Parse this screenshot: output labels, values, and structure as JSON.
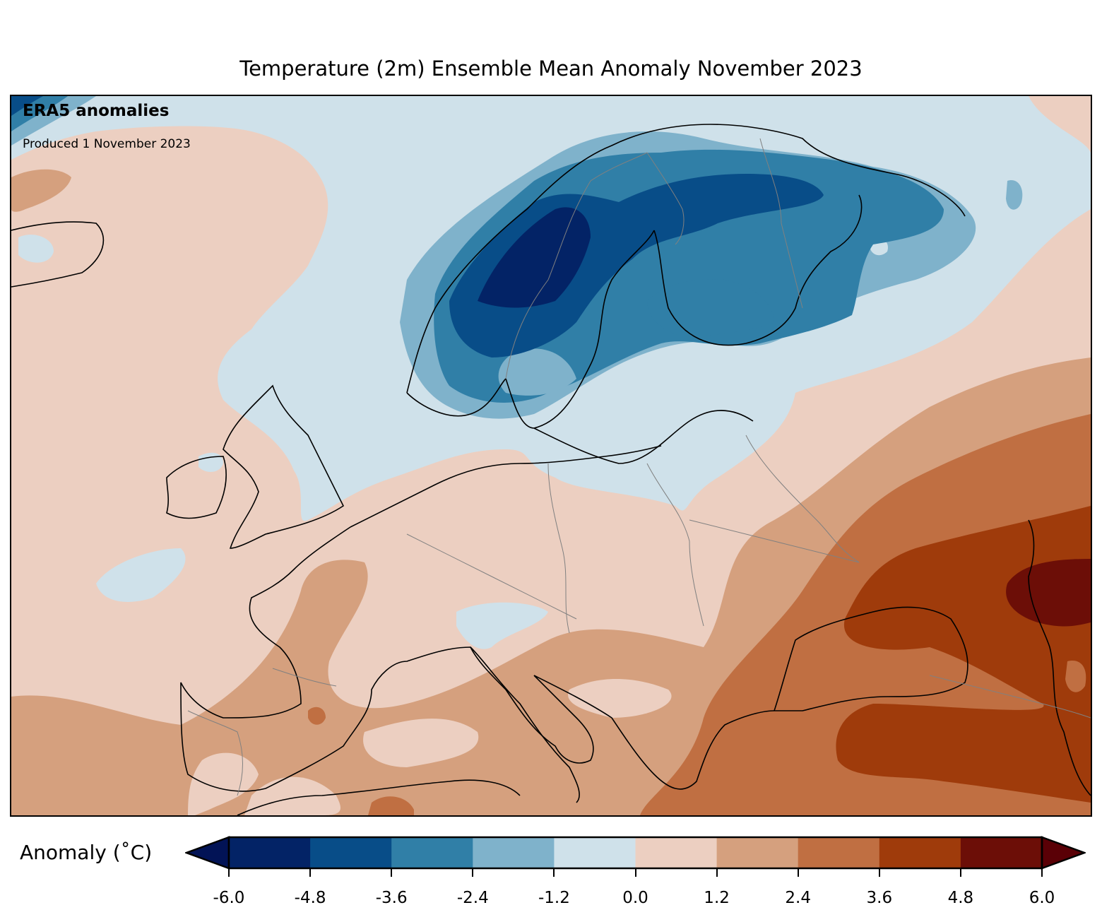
{
  "title": "Temperature (2m) Ensemble Mean Anomaly November 2023",
  "annotations": {
    "source": "ERA5 anomalies",
    "produced": "Produced 1 November 2023"
  },
  "colorbar": {
    "label": "Anomaly (˚C)",
    "ticks": [
      "-6.0",
      "-4.8",
      "-3.6",
      "-2.4",
      "-1.2",
      "0.0",
      "1.2",
      "2.4",
      "3.6",
      "4.8",
      "6.0"
    ],
    "levels": [
      -6.0,
      -4.8,
      -3.6,
      -2.4,
      -1.2,
      0.0,
      1.2,
      2.4,
      3.6,
      4.8,
      6.0
    ],
    "colors": [
      "#032366",
      "#084d88",
      "#307fa7",
      "#7fb2cb",
      "#cfe1ea",
      "#eccfc1",
      "#d5a07e",
      "#c06f42",
      "#9f3b0b",
      "#6c0e07"
    ],
    "under_color": "#021356",
    "over_color": "#5a0006",
    "extend": "both"
  }
}
